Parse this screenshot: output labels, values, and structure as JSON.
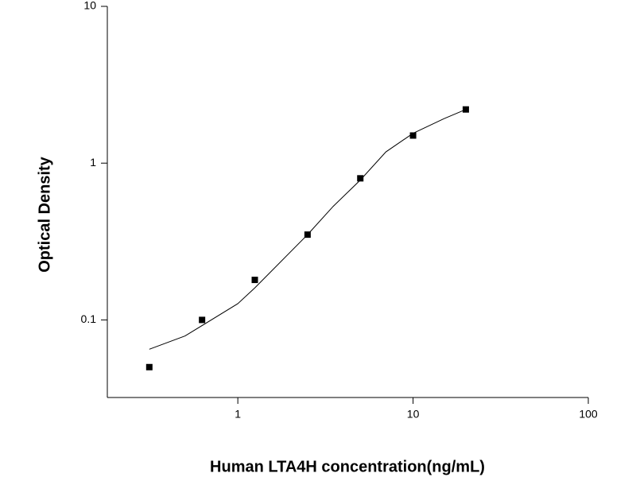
{
  "chart_data": {
    "type": "scatter",
    "xlabel": "Human LTA4H concentration(ng/mL)",
    "ylabel": "Optical Density",
    "xscale": "log",
    "yscale": "log",
    "xlim": [
      0.18,
      100
    ],
    "ylim": [
      0.032,
      10
    ],
    "xticks": [
      1,
      10,
      100
    ],
    "yticks": [
      0.1,
      1,
      10
    ],
    "series": [
      {
        "marker": "square",
        "color": "#000000",
        "x": [
          0.3125,
          0.625,
          1.25,
          2.5,
          5,
          10,
          20
        ],
        "values": [
          0.05,
          0.1,
          0.18,
          0.35,
          0.8,
          1.5,
          2.2
        ]
      },
      {
        "marker": "line",
        "color": "#000000",
        "x": [
          0.3125,
          0.5,
          1,
          1.25,
          2.5,
          3.5,
          5,
          7,
          10,
          15,
          20
        ],
        "values": [
          0.065,
          0.079,
          0.127,
          0.16,
          0.35,
          0.53,
          0.78,
          1.18,
          1.55,
          1.92,
          2.2
        ]
      }
    ]
  }
}
